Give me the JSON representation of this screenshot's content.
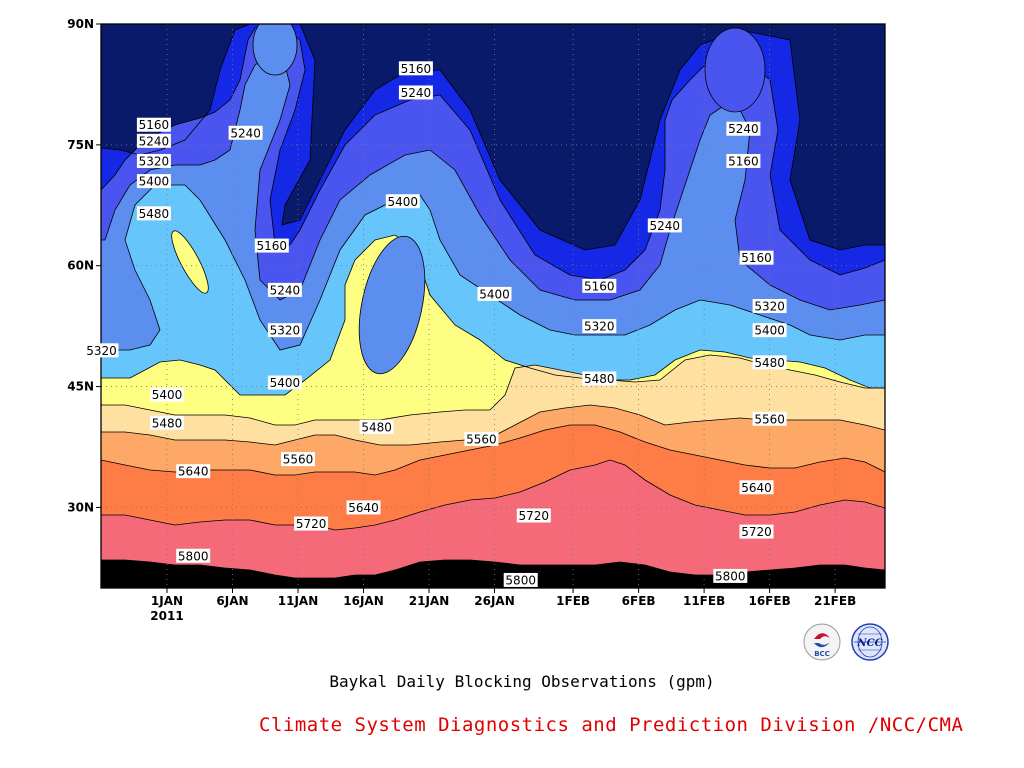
{
  "title": "Baykal Daily Blocking Observations (gpm)",
  "credit": "Climate System Diagnostics and Prediction Division /NCC/CMA",
  "logos": {
    "left_text": "BCC",
    "right_text": "NCC"
  },
  "chart_data": {
    "type": "contour",
    "title": "Baykal Daily Blocking Observations (gpm)",
    "xlabel": "",
    "ylabel": "",
    "x_ticks": [
      "1JAN",
      "6JAN",
      "11JAN",
      "16JAN",
      "21JAN",
      "26JAN",
      "1FEB",
      "6FEB",
      "11FEB",
      "16FEB",
      "21FEB"
    ],
    "x_year_label": "2011",
    "y_ticks": [
      "90N",
      "75N",
      "60N",
      "45N",
      "30N"
    ],
    "ylim": [
      20,
      90
    ],
    "grid": true,
    "levels": [
      5160,
      5240,
      5320,
      5400,
      5480,
      5560,
      5640,
      5720,
      5800
    ],
    "level_colors": [
      "#0a1a6b",
      "#1428e6",
      "#4a54ee",
      "#5c8ef0",
      "#66c6fc",
      "#fefe82",
      "#fee0a0",
      "#fea868",
      "#fe7c46",
      "#f56a78"
    ],
    "contour_labels": [
      {
        "text": "5160",
        "x": "31DEC",
        "y": 77.5
      },
      {
        "text": "5240",
        "x": "31DEC",
        "y": 75.5
      },
      {
        "text": "5320",
        "x": "31DEC",
        "y": 73
      },
      {
        "text": "5400",
        "x": "31DEC",
        "y": 70.5
      },
      {
        "text": "5480",
        "x": "31DEC",
        "y": 66.5
      },
      {
        "text": "5240",
        "x": "7JAN",
        "y": 76.5
      },
      {
        "text": "5160",
        "x": "9JAN",
        "y": 62.5
      },
      {
        "text": "5240",
        "x": "10JAN",
        "y": 57
      },
      {
        "text": "5320",
        "x": "10JAN",
        "y": 52
      },
      {
        "text": "5400",
        "x": "10JAN",
        "y": 45.5
      },
      {
        "text": "5320",
        "x": "27DEC",
        "y": 49.5
      },
      {
        "text": "5400",
        "x": "1JAN",
        "y": 44
      },
      {
        "text": "5480",
        "x": "1JAN",
        "y": 40.5
      },
      {
        "text": "5160",
        "x": "20JAN",
        "y": 84.5
      },
      {
        "text": "5240",
        "x": "20JAN",
        "y": 81.5
      },
      {
        "text": "5400",
        "x": "19JAN",
        "y": 68
      },
      {
        "text": "5480",
        "x": "17JAN",
        "y": 40
      },
      {
        "text": "5560",
        "x": "25JAN",
        "y": 38.5
      },
      {
        "text": "5400",
        "x": "26JAN",
        "y": 56.5
      },
      {
        "text": "5160",
        "x": "3FEB",
        "y": 57.5
      },
      {
        "text": "5320",
        "x": "3FEB",
        "y": 52.5
      },
      {
        "text": "5480",
        "x": "3FEB",
        "y": 46
      },
      {
        "text": "5240",
        "x": "8FEB",
        "y": 65
      },
      {
        "text": "5240",
        "x": "14FEB",
        "y": 77
      },
      {
        "text": "5160",
        "x": "14FEB",
        "y": 73
      },
      {
        "text": "5160",
        "x": "15FEB",
        "y": 61
      },
      {
        "text": "5320",
        "x": "16FEB",
        "y": 55
      },
      {
        "text": "5400",
        "x": "16FEB",
        "y": 52
      },
      {
        "text": "5480",
        "x": "16FEB",
        "y": 48
      },
      {
        "text": "5560",
        "x": "16FEB",
        "y": 41
      },
      {
        "text": "5640",
        "x": "15FEB",
        "y": 32.5
      },
      {
        "text": "5720",
        "x": "15FEB",
        "y": 27
      },
      {
        "text": "5800",
        "x": "13FEB",
        "y": 21.5
      },
      {
        "text": "5640",
        "x": "3JAN",
        "y": 34.5
      },
      {
        "text": "5560",
        "x": "11JAN",
        "y": 36
      },
      {
        "text": "5640",
        "x": "16JAN",
        "y": 30
      },
      {
        "text": "5720",
        "x": "12JAN",
        "y": 28
      },
      {
        "text": "5800",
        "x": "3JAN",
        "y": 24
      },
      {
        "text": "5720",
        "x": "29JAN",
        "y": 29
      },
      {
        "text": "5800",
        "x": "28JAN",
        "y": 21
      }
    ]
  }
}
